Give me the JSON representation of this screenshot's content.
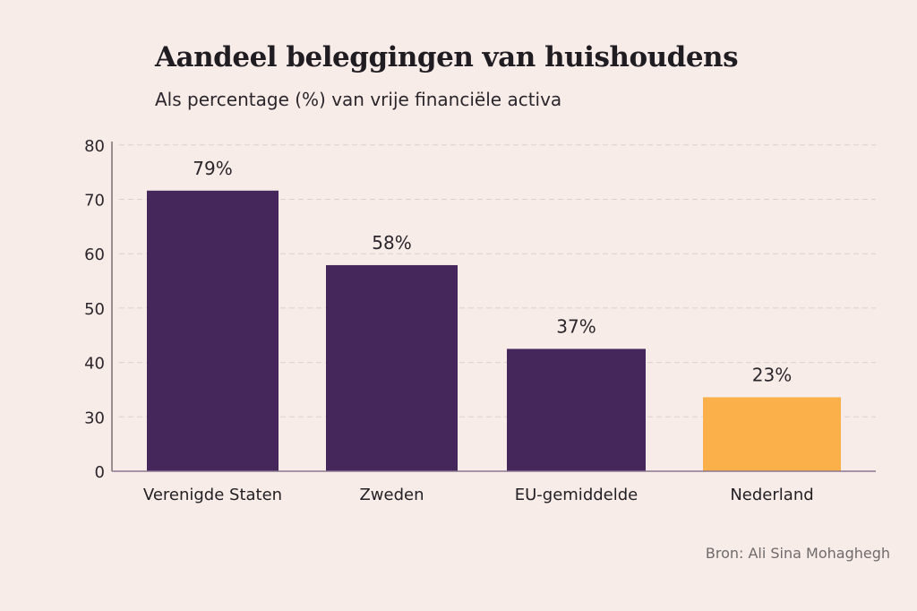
{
  "chart_data": {
    "type": "bar",
    "title": "Aandeel beleggingen van huishoudens",
    "subtitle": "Als percentage (%) van vrije financiële activa",
    "xlabel": "",
    "ylabel": "",
    "categories": [
      "Verenigde Staten",
      "Zweden",
      "EU-gemiddelde",
      "Nederland"
    ],
    "values": [
      79,
      58,
      37,
      23
    ],
    "bar_axis_values": [
      71.6,
      57.9,
      42.5,
      33.6
    ],
    "value_labels": [
      "79%",
      "58%",
      "37%",
      "23%"
    ],
    "colors": [
      "#45275c",
      "#45275c",
      "#45275c",
      "#fbb04a"
    ],
    "y_ticks": [
      0,
      30,
      40,
      50,
      60,
      70,
      80
    ],
    "ylim": [
      0,
      80
    ],
    "grid": true,
    "source": "Bron: Ali Sina Mohaghegh"
  }
}
